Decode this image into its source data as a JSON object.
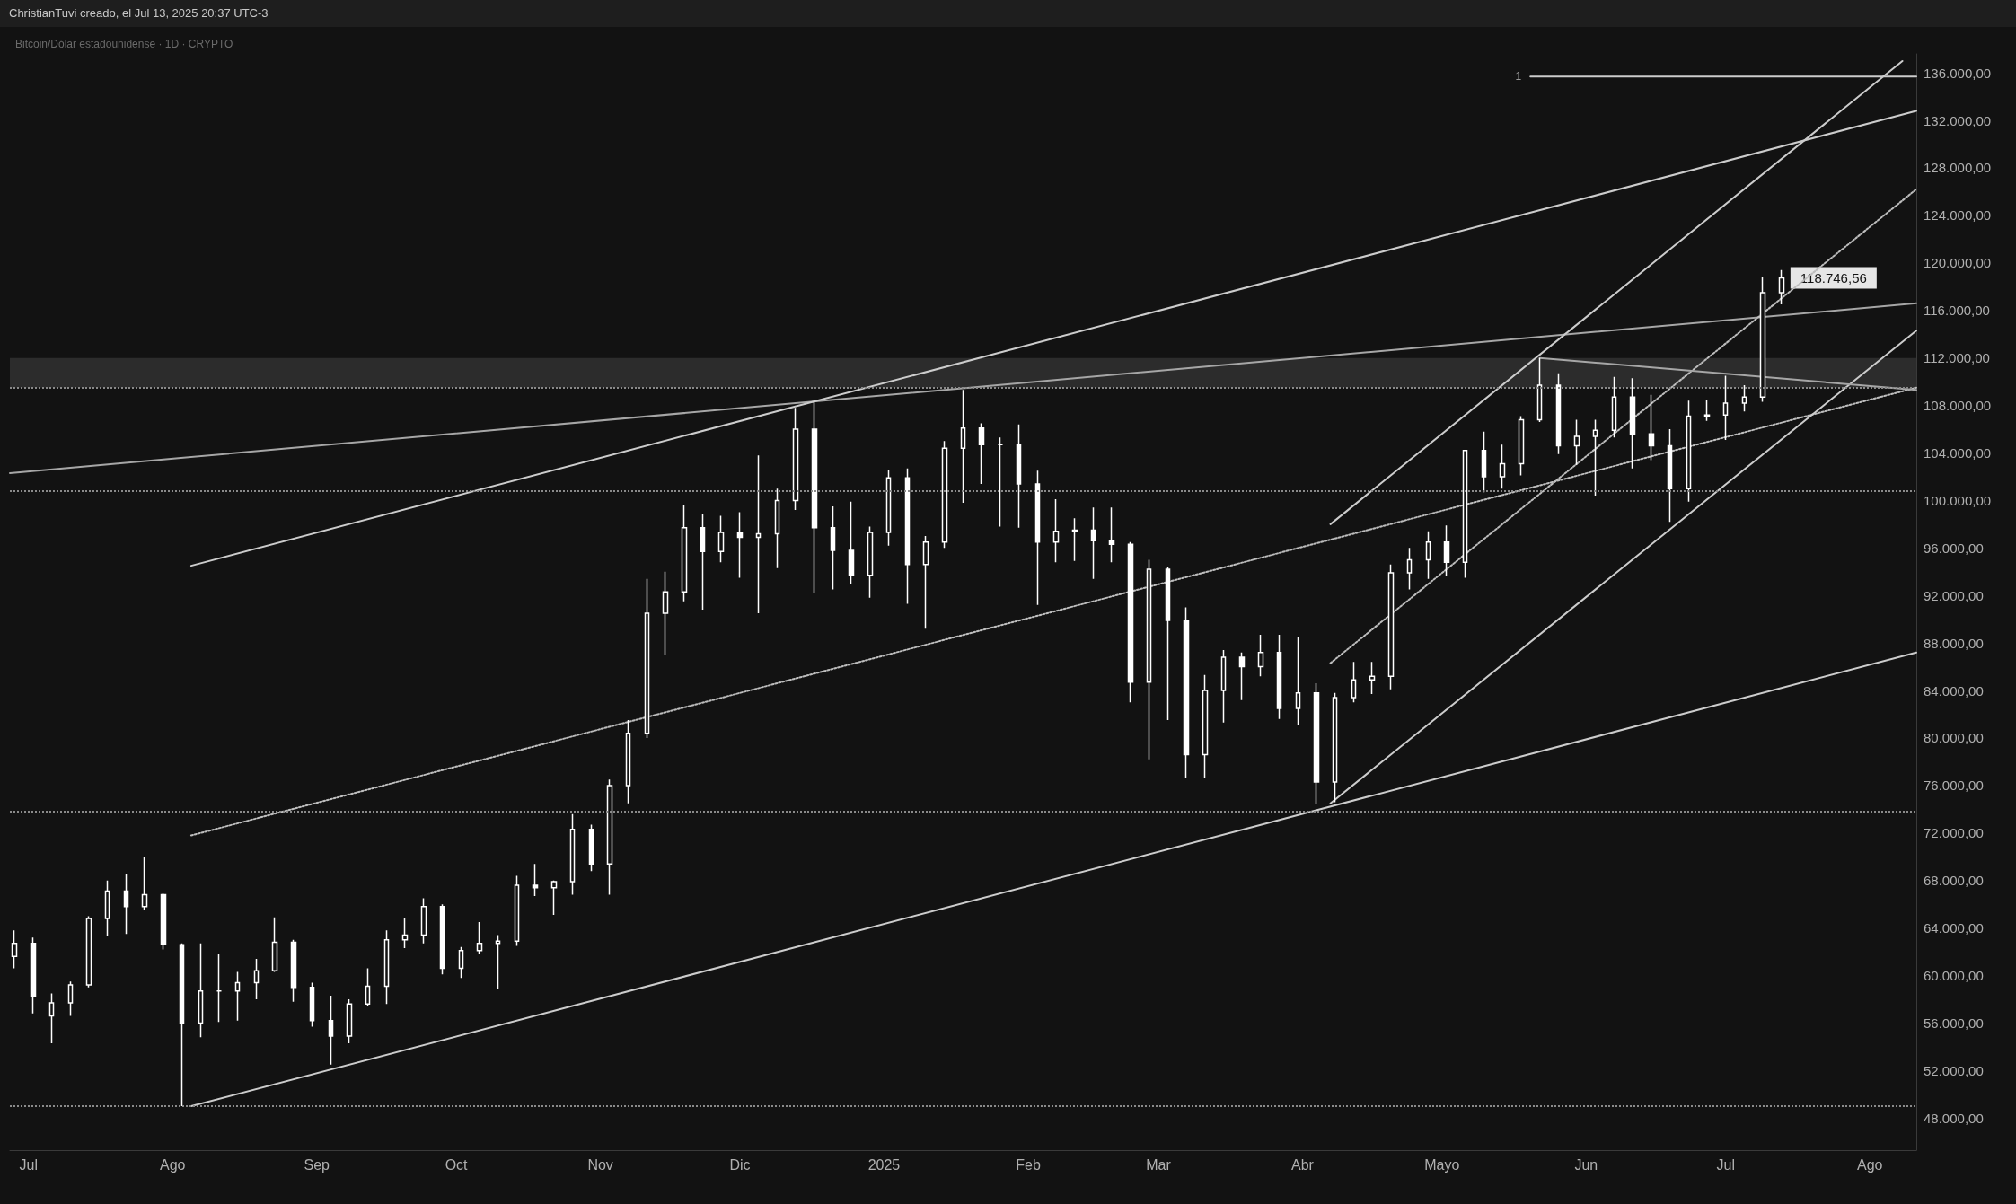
{
  "chart_data": {
    "type": "candlestick",
    "subtitle": "Bitcoin/Dólar estadounidense · 1D · CRYPTO",
    "annotations": [
      "ChristianTuvi creado, el Jul 13, 2025 20:37 UTC-3",
      {
        "text": "118.746,56",
        "x": "2025-07-13",
        "y": 118746.56
      },
      {
        "text": "1",
        "x": "2025-05-20",
        "y": 135700
      }
    ],
    "color": "#ffffff",
    "x": [
      "2024-06-28",
      "2024-07-02",
      "2024-07-06",
      "2024-07-10",
      "2024-07-14",
      "2024-07-18",
      "2024-07-22",
      "2024-07-26",
      "2024-07-30",
      "2024-08-03",
      "2024-08-07",
      "2024-08-11",
      "2024-08-15",
      "2024-08-19",
      "2024-08-23",
      "2024-08-27",
      "2024-08-31",
      "2024-09-04",
      "2024-09-08",
      "2024-09-12",
      "2024-09-16",
      "2024-09-20",
      "2024-09-24",
      "2024-09-28",
      "2024-10-02",
      "2024-10-06",
      "2024-10-10",
      "2024-10-14",
      "2024-10-18",
      "2024-10-22",
      "2024-10-26",
      "2024-10-30",
      "2024-11-03",
      "2024-11-07",
      "2024-11-11",
      "2024-11-15",
      "2024-11-19",
      "2024-11-23",
      "2024-11-27",
      "2024-12-01",
      "2024-12-05",
      "2024-12-09",
      "2024-12-13",
      "2024-12-17",
      "2024-12-21",
      "2024-12-25",
      "2024-12-29",
      "2025-01-02",
      "2025-01-06",
      "2025-01-10",
      "2025-01-14",
      "2025-01-18",
      "2025-01-22",
      "2025-01-26",
      "2025-01-30",
      "2025-02-03",
      "2025-02-07",
      "2025-02-11",
      "2025-02-15",
      "2025-02-19",
      "2025-02-23",
      "2025-02-27",
      "2025-03-03",
      "2025-03-07",
      "2025-03-11",
      "2025-03-15",
      "2025-03-19",
      "2025-03-23",
      "2025-03-27",
      "2025-03-31",
      "2025-04-04",
      "2025-04-08",
      "2025-04-12",
      "2025-04-16",
      "2025-04-20",
      "2025-04-24",
      "2025-04-28",
      "2025-05-02",
      "2025-05-06",
      "2025-05-10",
      "2025-05-14",
      "2025-05-18",
      "2025-05-22",
      "2025-05-26",
      "2025-05-30",
      "2025-06-03",
      "2025-06-07",
      "2025-06-11",
      "2025-06-15",
      "2025-06-19",
      "2025-06-23",
      "2025-06-27",
      "2025-07-01",
      "2025-07-05",
      "2025-07-09",
      "2025-07-13"
    ],
    "ohlc": [
      [
        61600,
        63800,
        60600,
        62700
      ],
      [
        62700,
        63200,
        56800,
        58200
      ],
      [
        56600,
        58500,
        54300,
        57700
      ],
      [
        57700,
        59500,
        56600,
        59200
      ],
      [
        59200,
        65000,
        59000,
        64800
      ],
      [
        64800,
        68000,
        63300,
        67100
      ],
      [
        67100,
        68500,
        63500,
        65800
      ],
      [
        65800,
        70000,
        65500,
        66800
      ],
      [
        66800,
        66900,
        62200,
        62600
      ],
      [
        62600,
        62700,
        49000,
        56000
      ],
      [
        56000,
        62700,
        54800,
        58700
      ],
      [
        58700,
        61800,
        56100,
        58700
      ],
      [
        58700,
        60300,
        56200,
        59400
      ],
      [
        59400,
        61400,
        58000,
        60400
      ],
      [
        60400,
        64900,
        60300,
        62800
      ],
      [
        62800,
        63000,
        57800,
        59000
      ],
      [
        59000,
        59400,
        55700,
        56200
      ],
      [
        56200,
        58300,
        52500,
        54900
      ],
      [
        54900,
        58000,
        54300,
        57600
      ],
      [
        57600,
        60600,
        57400,
        59100
      ],
      [
        59100,
        63800,
        57600,
        63000
      ],
      [
        63000,
        64800,
        62300,
        63400
      ],
      [
        63400,
        66500,
        62700,
        65800
      ],
      [
        65800,
        66000,
        60100,
        60600
      ],
      [
        60600,
        62400,
        59800,
        62100
      ],
      [
        62100,
        64500,
        61800,
        62700
      ],
      [
        62700,
        63400,
        58900,
        62900
      ],
      [
        62900,
        68400,
        62500,
        67600
      ],
      [
        67600,
        69400,
        66700,
        67400
      ],
      [
        67400,
        68000,
        65100,
        67900
      ],
      [
        67900,
        73600,
        66800,
        72300
      ],
      [
        72300,
        72700,
        68800,
        69400
      ],
      [
        69400,
        76500,
        66800,
        76000
      ],
      [
        76000,
        81500,
        74500,
        80400
      ],
      [
        80400,
        93400,
        80000,
        90500
      ],
      [
        90500,
        94000,
        87000,
        92300
      ],
      [
        92300,
        99600,
        91500,
        97700
      ],
      [
        97700,
        98900,
        90800,
        95700
      ],
      [
        95700,
        98700,
        94800,
        97300
      ],
      [
        97300,
        99000,
        93500,
        96900
      ],
      [
        96900,
        103800,
        90500,
        97200
      ],
      [
        97200,
        101000,
        94300,
        100000
      ],
      [
        100000,
        107800,
        99200,
        106000
      ],
      [
        106000,
        108300,
        92200,
        97700
      ],
      [
        97700,
        99500,
        92500,
        95800
      ],
      [
        95800,
        99900,
        93000,
        93700
      ],
      [
        93700,
        97800,
        91800,
        97300
      ],
      [
        97300,
        102600,
        96200,
        101900
      ],
      [
        101900,
        102700,
        91300,
        94600
      ],
      [
        94600,
        97000,
        89200,
        96500
      ],
      [
        96500,
        105000,
        96000,
        104400
      ],
      [
        104400,
        109300,
        99800,
        106100
      ],
      [
        106100,
        106500,
        101400,
        104700
      ],
      [
        104700,
        105300,
        97800,
        104700
      ],
      [
        104700,
        106400,
        97700,
        101400
      ],
      [
        101400,
        102500,
        91200,
        96500
      ],
      [
        96500,
        100100,
        94800,
        97400
      ],
      [
        97400,
        98500,
        94900,
        97500
      ],
      [
        97500,
        99400,
        93400,
        96600
      ],
      [
        96600,
        99400,
        94800,
        96300
      ],
      [
        96300,
        96500,
        83000,
        84700
      ],
      [
        84700,
        95000,
        78200,
        94200
      ],
      [
        94200,
        94400,
        81500,
        89900
      ],
      [
        89900,
        91000,
        76600,
        78600
      ],
      [
        78600,
        85300,
        76600,
        84000
      ],
      [
        84000,
        87400,
        81300,
        86800
      ],
      [
        86800,
        87200,
        83200,
        86000
      ],
      [
        86000,
        88700,
        85200,
        87200
      ],
      [
        87200,
        88700,
        81600,
        82500
      ],
      [
        82500,
        88500,
        81100,
        83800
      ],
      [
        83800,
        84600,
        74400,
        76300
      ],
      [
        76300,
        83800,
        74600,
        83400
      ],
      [
        83400,
        86400,
        83000,
        84900
      ],
      [
        84900,
        86400,
        83700,
        85200
      ],
      [
        85200,
        94600,
        84100,
        93900
      ],
      [
        93900,
        96000,
        92500,
        95000
      ],
      [
        95000,
        97400,
        93400,
        96500
      ],
      [
        96500,
        97900,
        93600,
        94800
      ],
      [
        94800,
        104200,
        93500,
        104200
      ],
      [
        104200,
        105800,
        100700,
        102000
      ],
      [
        102000,
        104700,
        101000,
        103100
      ],
      [
        103100,
        107100,
        102100,
        106800
      ],
      [
        106800,
        112000,
        106600,
        109700
      ],
      [
        109700,
        110700,
        103900,
        104600
      ],
      [
        104600,
        106800,
        103000,
        105400
      ],
      [
        105400,
        106800,
        100400,
        105900
      ],
      [
        105900,
        110400,
        105300,
        108700
      ],
      [
        108700,
        110300,
        102700,
        105600
      ],
      [
        105600,
        108900,
        103400,
        104600
      ],
      [
        104600,
        106000,
        98200,
        101000
      ],
      [
        101000,
        108400,
        99900,
        107100
      ],
      [
        107100,
        108500,
        106700,
        107200
      ],
      [
        107200,
        110500,
        105100,
        108200
      ],
      [
        108200,
        109700,
        107500,
        108700
      ],
      [
        108700,
        118800,
        108300,
        117500
      ],
      [
        117500,
        119400,
        116500,
        118746.56
      ]
    ],
    "series": [
      {
        "type": "line",
        "color": "#a6a6a6",
        "line_style": "solid",
        "x": [
          "2024-06-27",
          "2025-08-11"
        ],
        "values": [
          102300,
          116600
        ]
      },
      {
        "type": "line",
        "color": "#cccccc",
        "line_style": "solid",
        "x": [
          "2024-08-05",
          "2025-08-11"
        ],
        "values": [
          94500,
          132800
        ]
      },
      {
        "type": "line",
        "color": "#cccccc",
        "line_style": "solid",
        "x": [
          "2024-08-05",
          "2025-08-11"
        ],
        "values": [
          49000,
          87200
        ]
      },
      {
        "type": "line",
        "color": "#bdbdbd",
        "line_style": "dotted",
        "x": [
          "2024-08-05",
          "2025-08-11"
        ],
        "values": [
          71800,
          109500
        ]
      },
      {
        "type": "line",
        "color": "#cccccc",
        "line_style": "solid",
        "x": [
          "2025-04-07",
          "2025-08-08"
        ],
        "values": [
          98000,
          137000
        ]
      },
      {
        "type": "line",
        "color": "#cccccc",
        "line_style": "solid",
        "x": [
          "2025-04-07",
          "2025-08-11"
        ],
        "values": [
          74500,
          114300
        ]
      },
      {
        "type": "line",
        "color": "#bdbdbd",
        "line_style": "dotted",
        "x": [
          "2025-04-07",
          "2025-08-11"
        ],
        "values": [
          86300,
          126200
        ]
      },
      {
        "type": "line",
        "color": "#a6a6a6",
        "line_style": "solid",
        "x": [
          "2025-05-22",
          "2025-08-11"
        ],
        "values": [
          112000,
          109300
        ]
      },
      {
        "type": "line",
        "color": "#cccccc",
        "line_style": "solid",
        "x": [
          "2025-05-20",
          "2025-08-11"
        ],
        "values": [
          135700,
          135700
        ]
      }
    ],
    "ref_lines": [
      {
        "axis": "y",
        "value": 49000,
        "color": "#8a8a8a",
        "line_style": "dotted"
      },
      {
        "axis": "y",
        "value": 73800,
        "color": "#8a8a8a",
        "line_style": "dotted"
      },
      {
        "axis": "y",
        "value": 100800,
        "color": "#8a8a8a",
        "line_style": "dotted"
      },
      {
        "axis": "y",
        "value": 109500,
        "color": "#8a8a8a",
        "line_style": "dotted"
      }
    ],
    "bands": [
      {
        "axis": "y",
        "from": 109500,
        "to": 112000,
        "color": "#333333"
      }
    ],
    "xlim": [
      "2024-06-27",
      "2025-08-11"
    ],
    "xticks": [
      {
        "value": "2024-07-01",
        "label": "Jul"
      },
      {
        "value": "2024-08-01",
        "label": "Ago"
      },
      {
        "value": "2024-09-01",
        "label": "Sep"
      },
      {
        "value": "2024-10-01",
        "label": "Oct"
      },
      {
        "value": "2024-11-01",
        "label": "Nov"
      },
      {
        "value": "2024-12-01",
        "label": "Dic"
      },
      {
        "value": "2025-01-01",
        "label": "2025"
      },
      {
        "value": "2025-02-01",
        "label": "Feb"
      },
      {
        "value": "2025-03-01",
        "label": "Mar"
      },
      {
        "value": "2025-04-01",
        "label": "Abr"
      },
      {
        "value": "2025-05-01",
        "label": "Mayo"
      },
      {
        "value": "2025-06-01",
        "label": "Jun"
      },
      {
        "value": "2025-07-01",
        "label": "Jul"
      },
      {
        "value": "2025-08-01",
        "label": "Ago"
      }
    ],
    "ylim": [
      45300,
      137600
    ],
    "yticks": [
      {
        "value": 48000,
        "label": "48.000,00"
      },
      {
        "value": 52000,
        "label": "52.000,00"
      },
      {
        "value": 56000,
        "label": "56.000,00"
      },
      {
        "value": 60000,
        "label": "60.000,00"
      },
      {
        "value": 64000,
        "label": "64.000,00"
      },
      {
        "value": 68000,
        "label": "68.000,00"
      },
      {
        "value": 72000,
        "label": "72.000,00"
      },
      {
        "value": 76000,
        "label": "76.000,00"
      },
      {
        "value": 80000,
        "label": "80.000,00"
      },
      {
        "value": 84000,
        "label": "84.000,00"
      },
      {
        "value": 88000,
        "label": "88.000,00"
      },
      {
        "value": 92000,
        "label": "92.000,00"
      },
      {
        "value": 96000,
        "label": "96.000,00"
      },
      {
        "value": 100000,
        "label": "100.000,00"
      },
      {
        "value": 104000,
        "label": "104.000,00"
      },
      {
        "value": 108000,
        "label": "108.000,00"
      },
      {
        "value": 112000,
        "label": "112.000,00"
      },
      {
        "value": 116000,
        "label": "116.000,00"
      },
      {
        "value": 120000,
        "label": "120.000,00"
      },
      {
        "value": 124000,
        "label": "124.000,00"
      },
      {
        "value": 128000,
        "label": "128.000,00"
      },
      {
        "value": 132000,
        "label": "132.000,00"
      },
      {
        "value": 136000,
        "label": "136.000,00"
      }
    ]
  }
}
